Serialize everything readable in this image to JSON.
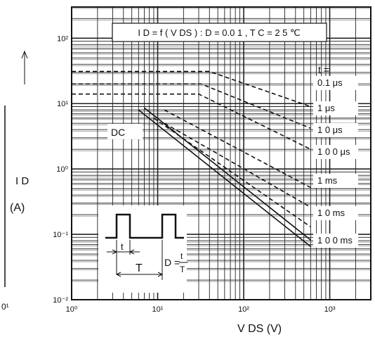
{
  "chart_data": {
    "type": "line",
    "title": "I D = f ( V DS ) : D = 0.0 1 ,  T C = 2 5 ℃",
    "xlabel": "V DS (V)",
    "ylabel": "I D",
    "ylabel_unit": "(A)",
    "x_scale": "log",
    "y_scale": "log",
    "xlim": [
      1,
      3000
    ],
    "ylim": [
      0.01,
      300
    ],
    "x_ticks": [
      {
        "value": 1,
        "label": "10⁰"
      },
      {
        "value": 10,
        "label": "10¹"
      },
      {
        "value": 100,
        "label": "10²"
      },
      {
        "value": 1000,
        "label": "10³"
      }
    ],
    "y_ticks": [
      {
        "value": 0.01,
        "label": "10⁻²"
      },
      {
        "value": 0.1,
        "label": "10⁻¹"
      },
      {
        "value": 1,
        "label": "10⁰"
      },
      {
        "value": 10,
        "label": "10¹"
      },
      {
        "value": 100,
        "label": "10²"
      }
    ],
    "grid": true,
    "pulse_header": "t =",
    "series": [
      {
        "name": "0.1 μs",
        "dash": true,
        "points": [
          [
            1,
            31
          ],
          [
            40,
            31
          ],
          [
            600,
            9
          ]
        ]
      },
      {
        "name": "1 μs",
        "dash": true,
        "points": [
          [
            1,
            20
          ],
          [
            32,
            20
          ],
          [
            600,
            4.2
          ]
        ]
      },
      {
        "name": "1 0 μs",
        "dash": true,
        "points": [
          [
            1,
            14
          ],
          [
            30,
            14
          ],
          [
            600,
            2.0
          ]
        ]
      },
      {
        "name": "1 0 0 μs",
        "dash": true,
        "points": [
          [
            12,
            8
          ],
          [
            600,
            0.52
          ]
        ]
      },
      {
        "name": "1 ms",
        "dash": true,
        "points": [
          [
            12,
            5
          ],
          [
            600,
            0.26
          ]
        ]
      },
      {
        "name": "1 0 ms",
        "dash": true,
        "points": [
          [
            9,
            6
          ],
          [
            600,
            0.13
          ]
        ]
      },
      {
        "name": "1 0 0 ms",
        "dash": false,
        "points": [
          [
            7,
            8.6
          ],
          [
            600,
            0.082
          ]
        ]
      },
      {
        "name": "DC",
        "dash": false,
        "points": [
          [
            6,
            8
          ],
          [
            600,
            0.065
          ]
        ]
      }
    ],
    "inset": {
      "t_label": "t",
      "T_label": "T",
      "formula_lhs": "D =",
      "formula_num": "t",
      "formula_den": "T"
    },
    "left_edge_label": "0¹"
  }
}
